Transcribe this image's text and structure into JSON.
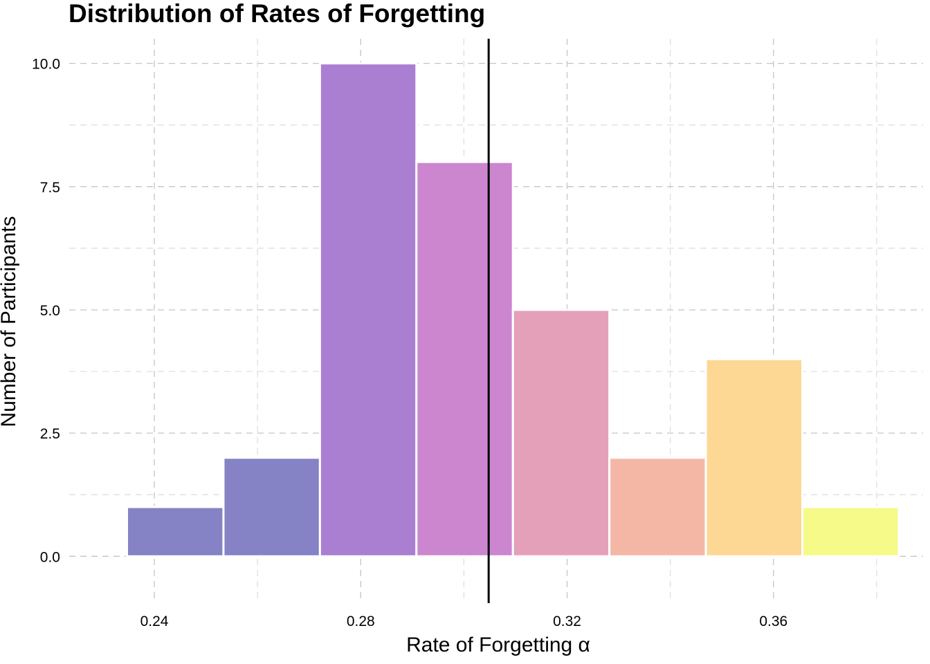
{
  "chart_data": {
    "type": "bar",
    "subtype": "histogram",
    "title": "Distribution of Rates of Forgetting",
    "xlabel": "Rate of Forgetting α",
    "ylabel": "Number of Participants",
    "xlim": [
      0.2235,
      0.389
    ],
    "ylim": [
      -0.95,
      10.5
    ],
    "x_ticks": [
      0.24,
      0.28,
      0.32,
      0.36
    ],
    "x_tick_labels": [
      "0.24",
      "0.28",
      "0.32",
      "0.36"
    ],
    "x_minor_gridlines": [
      0.26,
      0.3,
      0.34,
      0.38
    ],
    "y_ticks": [
      0.0,
      2.5,
      5.0,
      7.5,
      10.0
    ],
    "y_tick_labels": [
      "0.0",
      "2.5",
      "5.0",
      "7.5",
      "10.0"
    ],
    "y_minor_gridlines": [
      1.25,
      3.75,
      6.25,
      8.75
    ],
    "grid": true,
    "grid_style": "dashed",
    "bins": [
      {
        "x0": 0.2347,
        "x1": 0.2534,
        "value": 1,
        "color": "#8583C5"
      },
      {
        "x0": 0.2534,
        "x1": 0.2721,
        "value": 2,
        "color": "#8583C5"
      },
      {
        "x0": 0.2721,
        "x1": 0.2908,
        "value": 10,
        "color": "#AA7FD2"
      },
      {
        "x0": 0.2908,
        "x1": 0.3095,
        "value": 8,
        "color": "#CB86CF"
      },
      {
        "x0": 0.3095,
        "x1": 0.3282,
        "value": 5,
        "color": "#E5A0B9"
      },
      {
        "x0": 0.3282,
        "x1": 0.3469,
        "value": 2,
        "color": "#F5B7A5"
      },
      {
        "x0": 0.3469,
        "x1": 0.3656,
        "value": 4,
        "color": "#FDD794"
      },
      {
        "x0": 0.3656,
        "x1": 0.3843,
        "value": 1,
        "color": "#F5FA88"
      }
    ],
    "reference_line": {
      "x": 0.3048,
      "color": "#000000"
    }
  }
}
